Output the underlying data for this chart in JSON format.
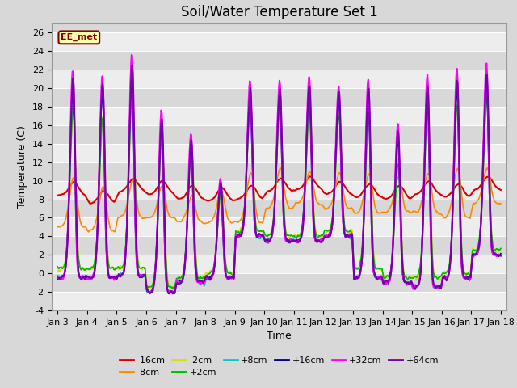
{
  "title": "Soil/Water Temperature Set 1",
  "xlabel": "Time",
  "ylabel": "Temperature (C)",
  "ylim": [
    -4,
    27
  ],
  "xtick_labels": [
    "Jan 3",
    "Jan 4",
    "Jan 5",
    "Jan 6",
    "Jan 7",
    "Jan 8",
    "Jan 9",
    "Jan 10",
    "Jan 11",
    "Jan 12",
    "Jan 13",
    "Jan 14",
    "Jan 15",
    "Jan 16",
    "Jan 17",
    "Jan 18"
  ],
  "series": [
    {
      "label": "-16cm",
      "color": "#dd0000",
      "lw": 1.5
    },
    {
      "label": "-8cm",
      "color": "#ff8800",
      "lw": 1.2
    },
    {
      "label": "-2cm",
      "color": "#dddd00",
      "lw": 1.2
    },
    {
      "label": "+2cm",
      "color": "#00bb00",
      "lw": 1.2
    },
    {
      "label": "+8cm",
      "color": "#00cccc",
      "lw": 1.2
    },
    {
      "label": "+16cm",
      "color": "#000099",
      "lw": 1.2
    },
    {
      "label": "+32cm",
      "color": "#ff00ff",
      "lw": 1.5
    },
    {
      "label": "+64cm",
      "color": "#7700aa",
      "lw": 1.5
    }
  ],
  "ee_met_label": "EE_met",
  "ee_met_bg": "#ffffaa",
  "ee_met_border": "#880000",
  "fig_bg": "#d8d8d8",
  "plot_bg": "#d8d8d8",
  "title_fontsize": 12,
  "axis_fontsize": 9,
  "tick_fontsize": 8
}
